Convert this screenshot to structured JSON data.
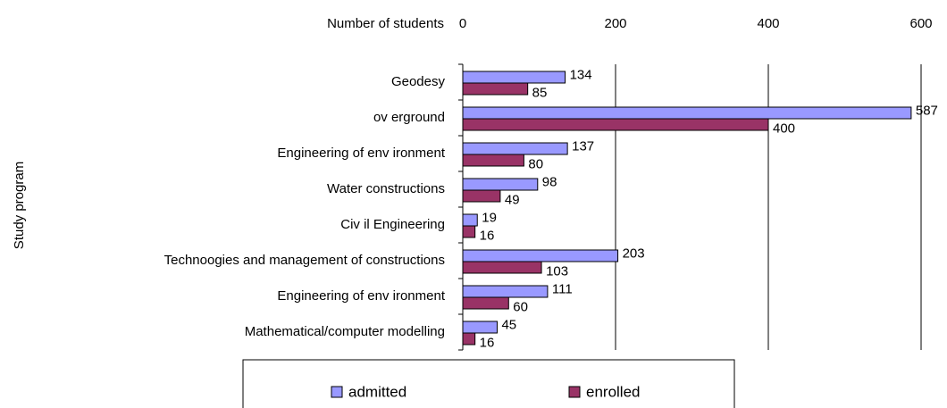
{
  "chart_data": {
    "type": "bar",
    "orientation": "horizontal",
    "x_label": "Number of students",
    "y_label": "Study program",
    "categories": [
      "Geodesy",
      "ov erground",
      "Engineering of env ironment",
      "Water constructions",
      "Civ il Engineering",
      "Technoogies and management of constructions",
      "Engineering of env ironment",
      "Mathematical/computer modelling"
    ],
    "series": [
      {
        "name": "admitted",
        "color": "#9999ff",
        "values": [
          134,
          587,
          137,
          98,
          19,
          203,
          111,
          45
        ]
      },
      {
        "name": "enrolled",
        "color": "#993366",
        "values": [
          85,
          400,
          80,
          49,
          16,
          103,
          60,
          16
        ]
      }
    ],
    "xlim": [
      0,
      600
    ],
    "xticks": [
      0,
      200,
      400,
      600
    ],
    "grid": true,
    "legend": "bottom"
  }
}
